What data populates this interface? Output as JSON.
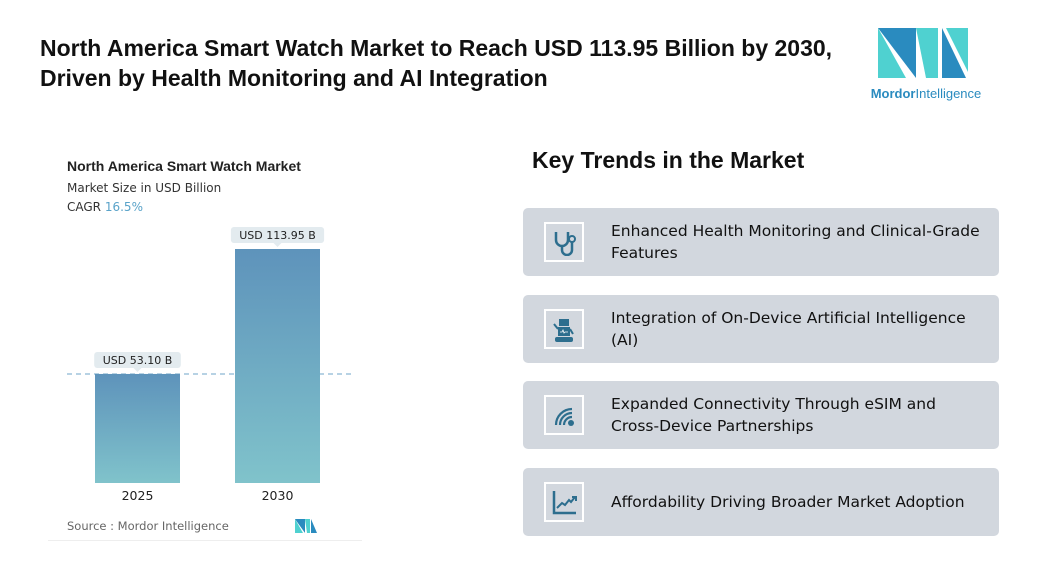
{
  "title": "North America Smart Watch Market to Reach USD 113.95 Billion by 2030, Driven by Health Monitoring and AI Integration",
  "logo": {
    "word1": "Mordor",
    "word2": "Intelligence"
  },
  "chart_data": {
    "type": "bar",
    "title": "North America Smart Watch Market",
    "subtitle": "Market Size in USD Billion",
    "cagr_label": "CAGR",
    "cagr_value": "16.5%",
    "categories": [
      "2025",
      "2030"
    ],
    "values": [
      53.1,
      113.95
    ],
    "data_labels": [
      "USD 53.10 B",
      "USD 113.95 B"
    ],
    "ylim": [
      0,
      120
    ],
    "grid": false,
    "reference_line": "dashed at 2025 value",
    "bar_color_top": "#5e93bb",
    "bar_color_bottom": "#80c3cb",
    "source": "Source :  Mordor Intelligence"
  },
  "trends": {
    "heading": "Key Trends in the Market",
    "icon_color": "#2d6e8e",
    "items": [
      {
        "icon": "stethoscope-icon",
        "text": "Enhanced Health Monitoring and Clinical-Grade Features"
      },
      {
        "icon": "robot-icon",
        "text": "Integration of On-Device Artificial Intelligence (AI)"
      },
      {
        "icon": "signal-icon",
        "text": "Expanded Connectivity Through eSIM and Cross-Device Partnerships"
      },
      {
        "icon": "growth-chart-icon",
        "text": "Affordability Driving Broader Market Adoption"
      }
    ]
  }
}
